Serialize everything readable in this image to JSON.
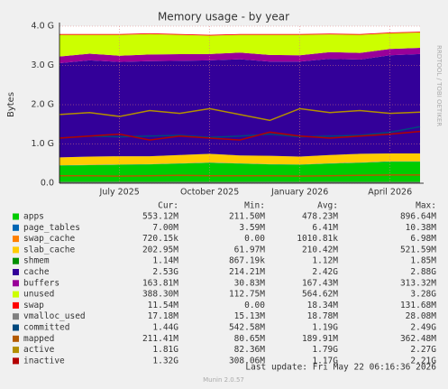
{
  "chart_data": {
    "type": "area",
    "title": "Memory usage - by year",
    "y_label": "Bytes",
    "side_text": "RRDTOOL / TOBI OETIKER",
    "x": [
      "2025-05",
      "2025-06",
      "2025-07",
      "2025-08",
      "2025-09",
      "2025-10",
      "2025-11",
      "2025-12",
      "2026-01",
      "2026-02",
      "2026-03",
      "2026-04",
      "2026-05"
    ],
    "xticks": [
      {
        "value": "2025-07",
        "label": "July 2025"
      },
      {
        "value": "2025-10",
        "label": "October 2025"
      },
      {
        "value": "2026-01",
        "label": "January 2026"
      },
      {
        "value": "2026-04",
        "label": "April 2026"
      }
    ],
    "ylim": [
      0,
      4
    ],
    "yticks": [
      {
        "value": 0,
        "label": "0.0"
      },
      {
        "value": 1,
        "label": "1.0 G"
      },
      {
        "value": 2,
        "label": "2.0 G"
      },
      {
        "value": 3,
        "label": "3.0 G"
      },
      {
        "value": 4,
        "label": "4.0 G"
      }
    ],
    "grid": true,
    "series": [
      {
        "name": "apps",
        "color": "#00cc00",
        "style": "area",
        "values": [
          0.45,
          0.46,
          0.47,
          0.48,
          0.5,
          0.52,
          0.5,
          0.48,
          0.47,
          0.5,
          0.52,
          0.55,
          0.55
        ]
      },
      {
        "name": "page_tables",
        "color": "#0066b3",
        "style": "area",
        "values": [
          0.006,
          0.006,
          0.006,
          0.006,
          0.006,
          0.007,
          0.006,
          0.006,
          0.006,
          0.007,
          0.007,
          0.007,
          0.007
        ]
      },
      {
        "name": "swap_cache",
        "color": "#ff8000",
        "style": "area",
        "values": [
          0.001,
          0.001,
          0.001,
          0.001,
          0.001,
          0.001,
          0.001,
          0.001,
          0.001,
          0.001,
          0.001,
          0.001,
          0.001
        ]
      },
      {
        "name": "slab_cache",
        "color": "#ffcc00",
        "style": "area",
        "values": [
          0.2,
          0.21,
          0.21,
          0.2,
          0.21,
          0.22,
          0.2,
          0.21,
          0.2,
          0.21,
          0.22,
          0.2,
          0.2
        ]
      },
      {
        "name": "shmem",
        "color": "#008f00",
        "style": "area",
        "values": [
          0.001,
          0.001,
          0.001,
          0.001,
          0.001,
          0.001,
          0.001,
          0.001,
          0.001,
          0.001,
          0.001,
          0.001,
          0.001
        ]
      },
      {
        "name": "cache",
        "color": "#330099",
        "style": "area",
        "values": [
          2.4,
          2.45,
          2.4,
          2.42,
          2.4,
          2.38,
          2.45,
          2.4,
          2.42,
          2.45,
          2.4,
          2.5,
          2.53
        ]
      },
      {
        "name": "buffers",
        "color": "#990099",
        "style": "area",
        "values": [
          0.17,
          0.17,
          0.16,
          0.17,
          0.17,
          0.16,
          0.17,
          0.17,
          0.16,
          0.17,
          0.17,
          0.16,
          0.16
        ]
      },
      {
        "name": "unused",
        "color": "#ccff00",
        "style": "area",
        "values": [
          0.55,
          0.48,
          0.53,
          0.52,
          0.49,
          0.47,
          0.45,
          0.51,
          0.52,
          0.45,
          0.46,
          0.4,
          0.39
        ]
      },
      {
        "name": "swap",
        "color": "#ff0000",
        "style": "area",
        "values": [
          0.02,
          0.02,
          0.02,
          0.02,
          0.02,
          0.02,
          0.02,
          0.02,
          0.02,
          0.02,
          0.02,
          0.02,
          0.02
        ]
      },
      {
        "name": "vmalloc_used",
        "color": "#808080",
        "style": "line",
        "values": [
          0.018,
          0.018,
          0.019,
          0.018,
          0.019,
          0.018,
          0.018,
          0.019,
          0.018,
          0.019,
          0.018,
          0.018,
          0.017
        ]
      },
      {
        "name": "committed",
        "color": "#00487d",
        "style": "line",
        "values": [
          1.15,
          1.2,
          1.18,
          1.2,
          1.22,
          1.17,
          1.2,
          1.25,
          1.18,
          1.2,
          1.22,
          1.3,
          1.44
        ]
      },
      {
        "name": "mapped",
        "color": "#b35a00",
        "style": "line",
        "values": [
          0.19,
          0.19,
          0.18,
          0.19,
          0.2,
          0.19,
          0.19,
          0.19,
          0.18,
          0.19,
          0.2,
          0.21,
          0.21
        ]
      },
      {
        "name": "active",
        "color": "#b38f00",
        "style": "line",
        "values": [
          1.75,
          1.8,
          1.7,
          1.85,
          1.78,
          1.9,
          1.75,
          1.6,
          1.9,
          1.8,
          1.85,
          1.78,
          1.81
        ]
      },
      {
        "name": "inactive",
        "color": "#b30000",
        "style": "line",
        "values": [
          1.15,
          1.2,
          1.25,
          1.1,
          1.2,
          1.15,
          1.1,
          1.3,
          1.2,
          1.15,
          1.2,
          1.25,
          1.32
        ]
      }
    ]
  },
  "legend_table": {
    "headers": [
      "Cur:",
      "Min:",
      "Avg:",
      "Max:"
    ],
    "rows": [
      [
        "553.12M",
        "211.50M",
        "478.23M",
        "896.64M"
      ],
      [
        "7.00M",
        "3.59M",
        "6.41M",
        "10.38M"
      ],
      [
        "720.15k",
        "0.00",
        "1010.81k",
        "6.98M"
      ],
      [
        "202.95M",
        "61.97M",
        "210.42M",
        "521.59M"
      ],
      [
        "1.14M",
        "867.19k",
        "1.12M",
        "1.85M"
      ],
      [
        "2.53G",
        "214.21M",
        "2.42G",
        "2.88G"
      ],
      [
        "163.81M",
        "30.83M",
        "167.43M",
        "313.32M"
      ],
      [
        "388.30M",
        "112.75M",
        "564.62M",
        "3.28G"
      ],
      [
        "11.54M",
        "0.00",
        "18.34M",
        "131.68M"
      ],
      [
        "17.18M",
        "15.13M",
        "18.78M",
        "28.08M"
      ],
      [
        "1.44G",
        "542.58M",
        "1.19G",
        "2.49G"
      ],
      [
        "211.41M",
        "80.65M",
        "189.91M",
        "362.48M"
      ],
      [
        "1.81G",
        "82.36M",
        "1.79G",
        "2.27G"
      ],
      [
        "1.32G",
        "308.06M",
        "1.17G",
        "2.21G"
      ]
    ]
  },
  "footer": {
    "last_update": "Last update: Fri May 22 06:16:36 2026",
    "version": "Munin 2.0.57"
  }
}
